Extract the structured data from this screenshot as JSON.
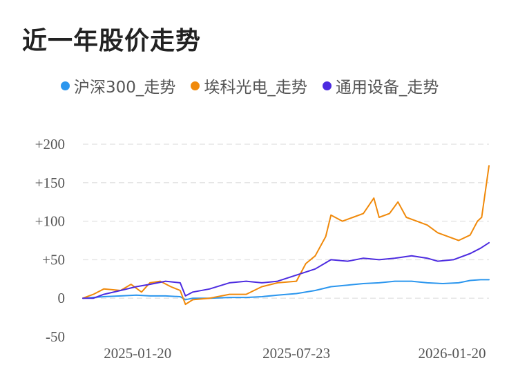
{
  "title": "近一年股价走势",
  "chart_data": {
    "type": "line",
    "title": "近一年股价走势",
    "xlabel": "",
    "ylabel": "",
    "x_ticks": [
      "2025-01-20",
      "2025-07-23",
      "2026-01-20"
    ],
    "x_range": [
      "2024-12-31",
      "2026-01-23"
    ],
    "y_ticks": [
      "+200",
      "+150",
      "+100",
      "+50",
      "0",
      "-50"
    ],
    "y_tick_values": [
      200,
      150,
      100,
      50,
      0,
      -50
    ],
    "ylim": [
      -50,
      200
    ],
    "grid": "horizontal dashed",
    "legend_position": "top",
    "series": [
      {
        "name": "沪深300_走势",
        "color": "#2b96ee",
        "points": [
          [
            "2024-12-31",
            0
          ],
          [
            "2025-01-10",
            1
          ],
          [
            "2025-01-20",
            2
          ],
          [
            "2025-02-05",
            3
          ],
          [
            "2025-02-20",
            4
          ],
          [
            "2025-03-05",
            3
          ],
          [
            "2025-03-20",
            3
          ],
          [
            "2025-04-03",
            2
          ],
          [
            "2025-04-08",
            -2
          ],
          [
            "2025-04-15",
            0
          ],
          [
            "2025-05-01",
            0
          ],
          [
            "2025-05-20",
            1
          ],
          [
            "2025-06-05",
            1
          ],
          [
            "2025-06-20",
            2
          ],
          [
            "2025-07-05",
            4
          ],
          [
            "2025-07-23",
            6
          ],
          [
            "2025-08-10",
            10
          ],
          [
            "2025-08-25",
            15
          ],
          [
            "2025-09-10",
            17
          ],
          [
            "2025-09-25",
            19
          ],
          [
            "2025-10-10",
            20
          ],
          [
            "2025-10-25",
            22
          ],
          [
            "2025-11-10",
            22
          ],
          [
            "2025-11-25",
            20
          ],
          [
            "2025-12-10",
            19
          ],
          [
            "2025-12-25",
            20
          ],
          [
            "2026-01-05",
            23
          ],
          [
            "2026-01-15",
            24
          ],
          [
            "2026-01-23",
            24
          ]
        ]
      },
      {
        "name": "埃科光电_走势",
        "color": "#f0890a",
        "points": [
          [
            "2024-12-31",
            0
          ],
          [
            "2025-01-10",
            5
          ],
          [
            "2025-01-20",
            12
          ],
          [
            "2025-02-05",
            10
          ],
          [
            "2025-02-15",
            18
          ],
          [
            "2025-02-25",
            8
          ],
          [
            "2025-03-05",
            20
          ],
          [
            "2025-03-15",
            22
          ],
          [
            "2025-03-25",
            15
          ],
          [
            "2025-04-03",
            10
          ],
          [
            "2025-04-08",
            -8
          ],
          [
            "2025-04-15",
            -2
          ],
          [
            "2025-05-01",
            0
          ],
          [
            "2025-05-20",
            5
          ],
          [
            "2025-06-05",
            5
          ],
          [
            "2025-06-20",
            15
          ],
          [
            "2025-07-05",
            20
          ],
          [
            "2025-07-23",
            22
          ],
          [
            "2025-08-01",
            45
          ],
          [
            "2025-08-10",
            55
          ],
          [
            "2025-08-20",
            80
          ],
          [
            "2025-08-25",
            108
          ],
          [
            "2025-09-05",
            100
          ],
          [
            "2025-09-15",
            105
          ],
          [
            "2025-09-25",
            110
          ],
          [
            "2025-10-05",
            130
          ],
          [
            "2025-10-10",
            105
          ],
          [
            "2025-10-20",
            110
          ],
          [
            "2025-10-28",
            125
          ],
          [
            "2025-11-05",
            105
          ],
          [
            "2025-11-15",
            100
          ],
          [
            "2025-11-25",
            95
          ],
          [
            "2025-12-05",
            85
          ],
          [
            "2025-12-15",
            80
          ],
          [
            "2025-12-25",
            75
          ],
          [
            "2026-01-05",
            82
          ],
          [
            "2026-01-12",
            100
          ],
          [
            "2026-01-16",
            105
          ],
          [
            "2026-01-23",
            172
          ]
        ]
      },
      {
        "name": "通用设备_走势",
        "color": "#4c2be0",
        "points": [
          [
            "2024-12-31",
            0
          ],
          [
            "2025-01-10",
            0
          ],
          [
            "2025-01-20",
            5
          ],
          [
            "2025-02-05",
            10
          ],
          [
            "2025-02-20",
            15
          ],
          [
            "2025-03-05",
            18
          ],
          [
            "2025-03-20",
            22
          ],
          [
            "2025-04-03",
            20
          ],
          [
            "2025-04-08",
            3
          ],
          [
            "2025-04-15",
            8
          ],
          [
            "2025-05-01",
            12
          ],
          [
            "2025-05-20",
            20
          ],
          [
            "2025-06-05",
            22
          ],
          [
            "2025-06-20",
            20
          ],
          [
            "2025-07-05",
            22
          ],
          [
            "2025-07-23",
            30
          ],
          [
            "2025-08-10",
            38
          ],
          [
            "2025-08-25",
            50
          ],
          [
            "2025-09-10",
            48
          ],
          [
            "2025-09-25",
            52
          ],
          [
            "2025-10-10",
            50
          ],
          [
            "2025-10-25",
            52
          ],
          [
            "2025-11-10",
            55
          ],
          [
            "2025-11-25",
            52
          ],
          [
            "2025-12-05",
            48
          ],
          [
            "2025-12-20",
            50
          ],
          [
            "2026-01-05",
            58
          ],
          [
            "2026-01-15",
            65
          ],
          [
            "2026-01-23",
            72
          ]
        ]
      }
    ]
  }
}
